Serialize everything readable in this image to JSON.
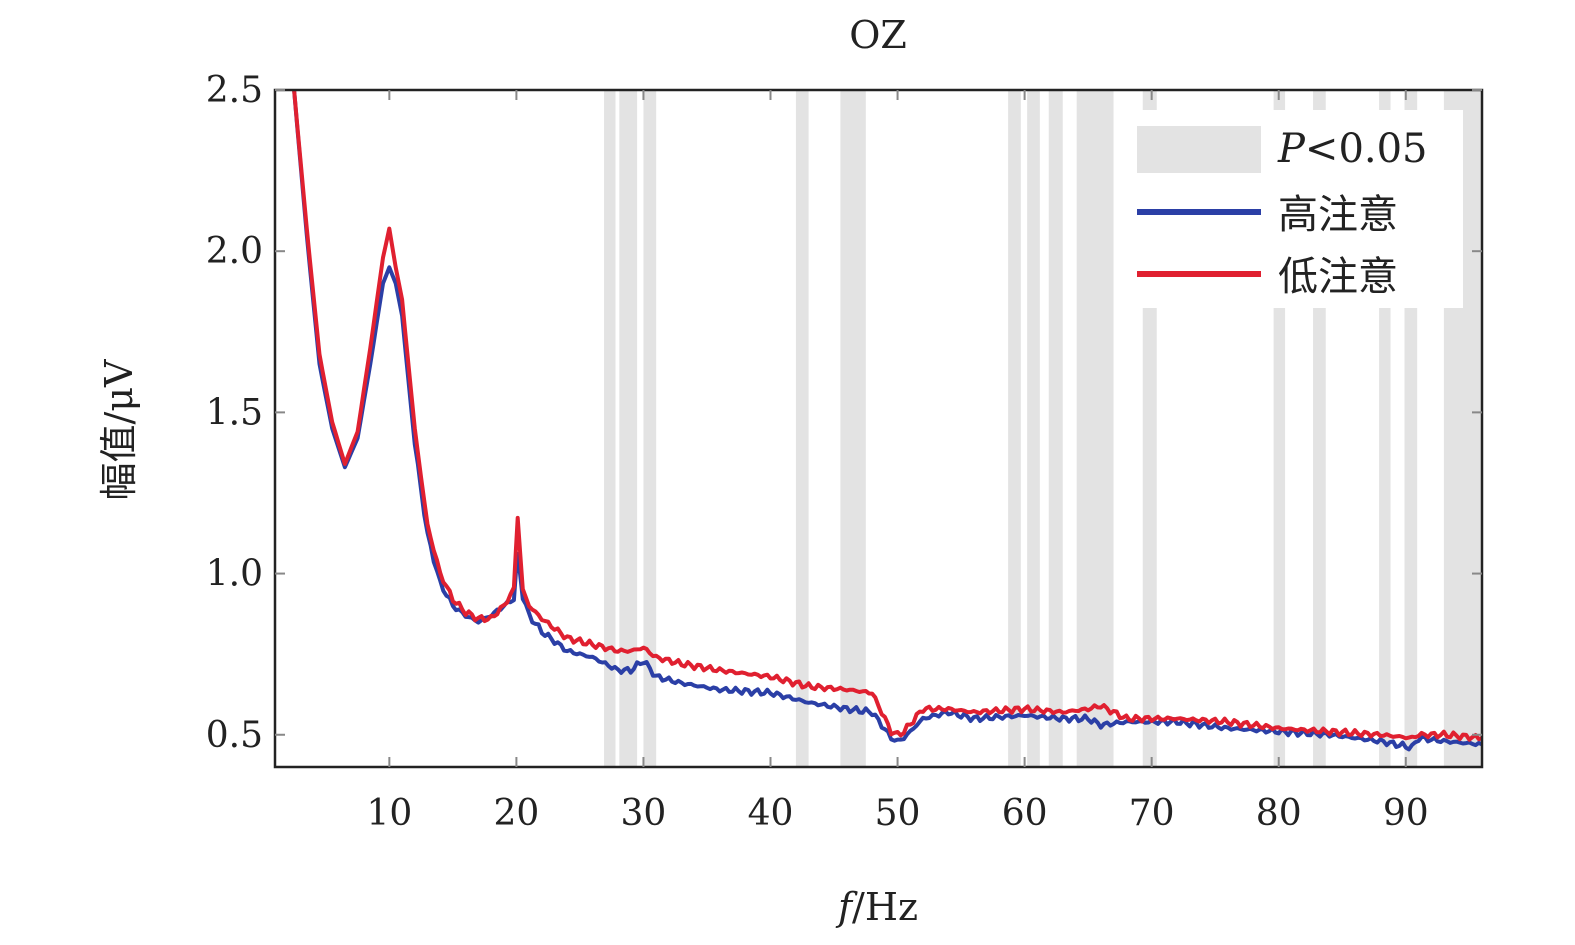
{
  "chart_data": {
    "type": "line",
    "title": "OZ",
    "xlabel_italic": "f",
    "xlabel_rest": "/Hz",
    "ylabel": "幅值/μV",
    "xlim": [
      1,
      96
    ],
    "ylim": [
      0.4,
      2.5
    ],
    "x_ticks": [
      10,
      20,
      30,
      40,
      50,
      60,
      70,
      80,
      90
    ],
    "y_ticks": [
      0.5,
      1.0,
      1.5,
      2.0,
      2.5
    ],
    "y_tick_labels": [
      "0.5",
      "1.0",
      "1.5",
      "2.0",
      "2.5"
    ],
    "grid": false,
    "legend_position": "top-right",
    "legend": {
      "significance_italic": "P",
      "significance_rest": "<0.05",
      "series_labels": [
        "高注意",
        "低注意"
      ]
    },
    "significance_bands": [
      [
        26.9,
        27.8
      ],
      [
        28.1,
        29.5
      ],
      [
        30.0,
        31.0
      ],
      [
        42.0,
        43.0
      ],
      [
        45.5,
        47.5
      ],
      [
        58.7,
        59.7
      ],
      [
        60.2,
        61.2
      ],
      [
        61.9,
        63.0
      ],
      [
        64.1,
        67.0
      ],
      [
        69.3,
        70.4
      ],
      [
        79.6,
        80.5
      ],
      [
        82.7,
        83.7
      ],
      [
        87.9,
        88.8
      ],
      [
        89.9,
        90.9
      ],
      [
        93.0,
        96.0
      ]
    ],
    "significance_color": "#e3e3e3",
    "series": [
      {
        "name": "高注意",
        "color": "#2b3fa6",
        "x": [
          2.5,
          3.5,
          4.5,
          5.5,
          6.5,
          7.5,
          8.5,
          9.5,
          10.0,
          10.5,
          11.0,
          12.0,
          13.0,
          14.0,
          15.0,
          16.0,
          17.0,
          18.0,
          19.0,
          19.8,
          20.1,
          20.5,
          21.0,
          22.0,
          24.0,
          26.0,
          28.0,
          29.0,
          30.0,
          31.0,
          33.0,
          36.0,
          40.0,
          43.0,
          46.0,
          48.0,
          49.5,
          50.0,
          50.5,
          52.0,
          54.0,
          56.0,
          60.0,
          63.0,
          65.0,
          66.0,
          68.0,
          72.0,
          76.0,
          80.0,
          84.0,
          88.0,
          90.5,
          91.0,
          93.0,
          96.0
        ],
        "y": [
          2.5,
          2.05,
          1.65,
          1.45,
          1.33,
          1.42,
          1.65,
          1.9,
          1.95,
          1.9,
          1.8,
          1.4,
          1.12,
          0.97,
          0.9,
          0.87,
          0.85,
          0.87,
          0.9,
          0.92,
          1.06,
          0.93,
          0.87,
          0.82,
          0.76,
          0.74,
          0.7,
          0.7,
          0.73,
          0.68,
          0.66,
          0.64,
          0.63,
          0.6,
          0.58,
          0.57,
          0.49,
          0.48,
          0.49,
          0.55,
          0.57,
          0.55,
          0.56,
          0.55,
          0.55,
          0.53,
          0.54,
          0.54,
          0.52,
          0.51,
          0.5,
          0.48,
          0.46,
          0.49,
          0.48,
          0.47
        ]
      },
      {
        "name": "低注意",
        "color": "#e02030",
        "x": [
          2.5,
          3.5,
          4.5,
          5.5,
          6.5,
          7.5,
          8.5,
          9.5,
          10.0,
          10.5,
          11.0,
          12.0,
          13.0,
          14.0,
          15.0,
          16.0,
          17.0,
          18.0,
          19.0,
          19.8,
          20.1,
          20.5,
          21.0,
          22.0,
          24.0,
          26.0,
          28.0,
          29.0,
          30.0,
          31.0,
          33.0,
          36.0,
          40.0,
          43.0,
          46.0,
          48.0,
          49.5,
          50.0,
          50.5,
          52.0,
          54.0,
          56.0,
          60.0,
          63.0,
          65.0,
          66.0,
          68.0,
          72.0,
          76.0,
          80.0,
          84.0,
          88.0,
          90.5,
          91.0,
          93.0,
          96.0
        ],
        "y": [
          2.5,
          2.07,
          1.68,
          1.47,
          1.34,
          1.44,
          1.7,
          1.98,
          2.07,
          1.95,
          1.85,
          1.45,
          1.15,
          1.0,
          0.92,
          0.88,
          0.86,
          0.86,
          0.9,
          0.95,
          1.18,
          0.95,
          0.9,
          0.86,
          0.8,
          0.78,
          0.76,
          0.76,
          0.77,
          0.74,
          0.72,
          0.7,
          0.68,
          0.65,
          0.64,
          0.63,
          0.51,
          0.5,
          0.51,
          0.58,
          0.58,
          0.57,
          0.58,
          0.57,
          0.58,
          0.59,
          0.55,
          0.55,
          0.54,
          0.52,
          0.51,
          0.5,
          0.49,
          0.5,
          0.5,
          0.49
        ]
      }
    ]
  }
}
